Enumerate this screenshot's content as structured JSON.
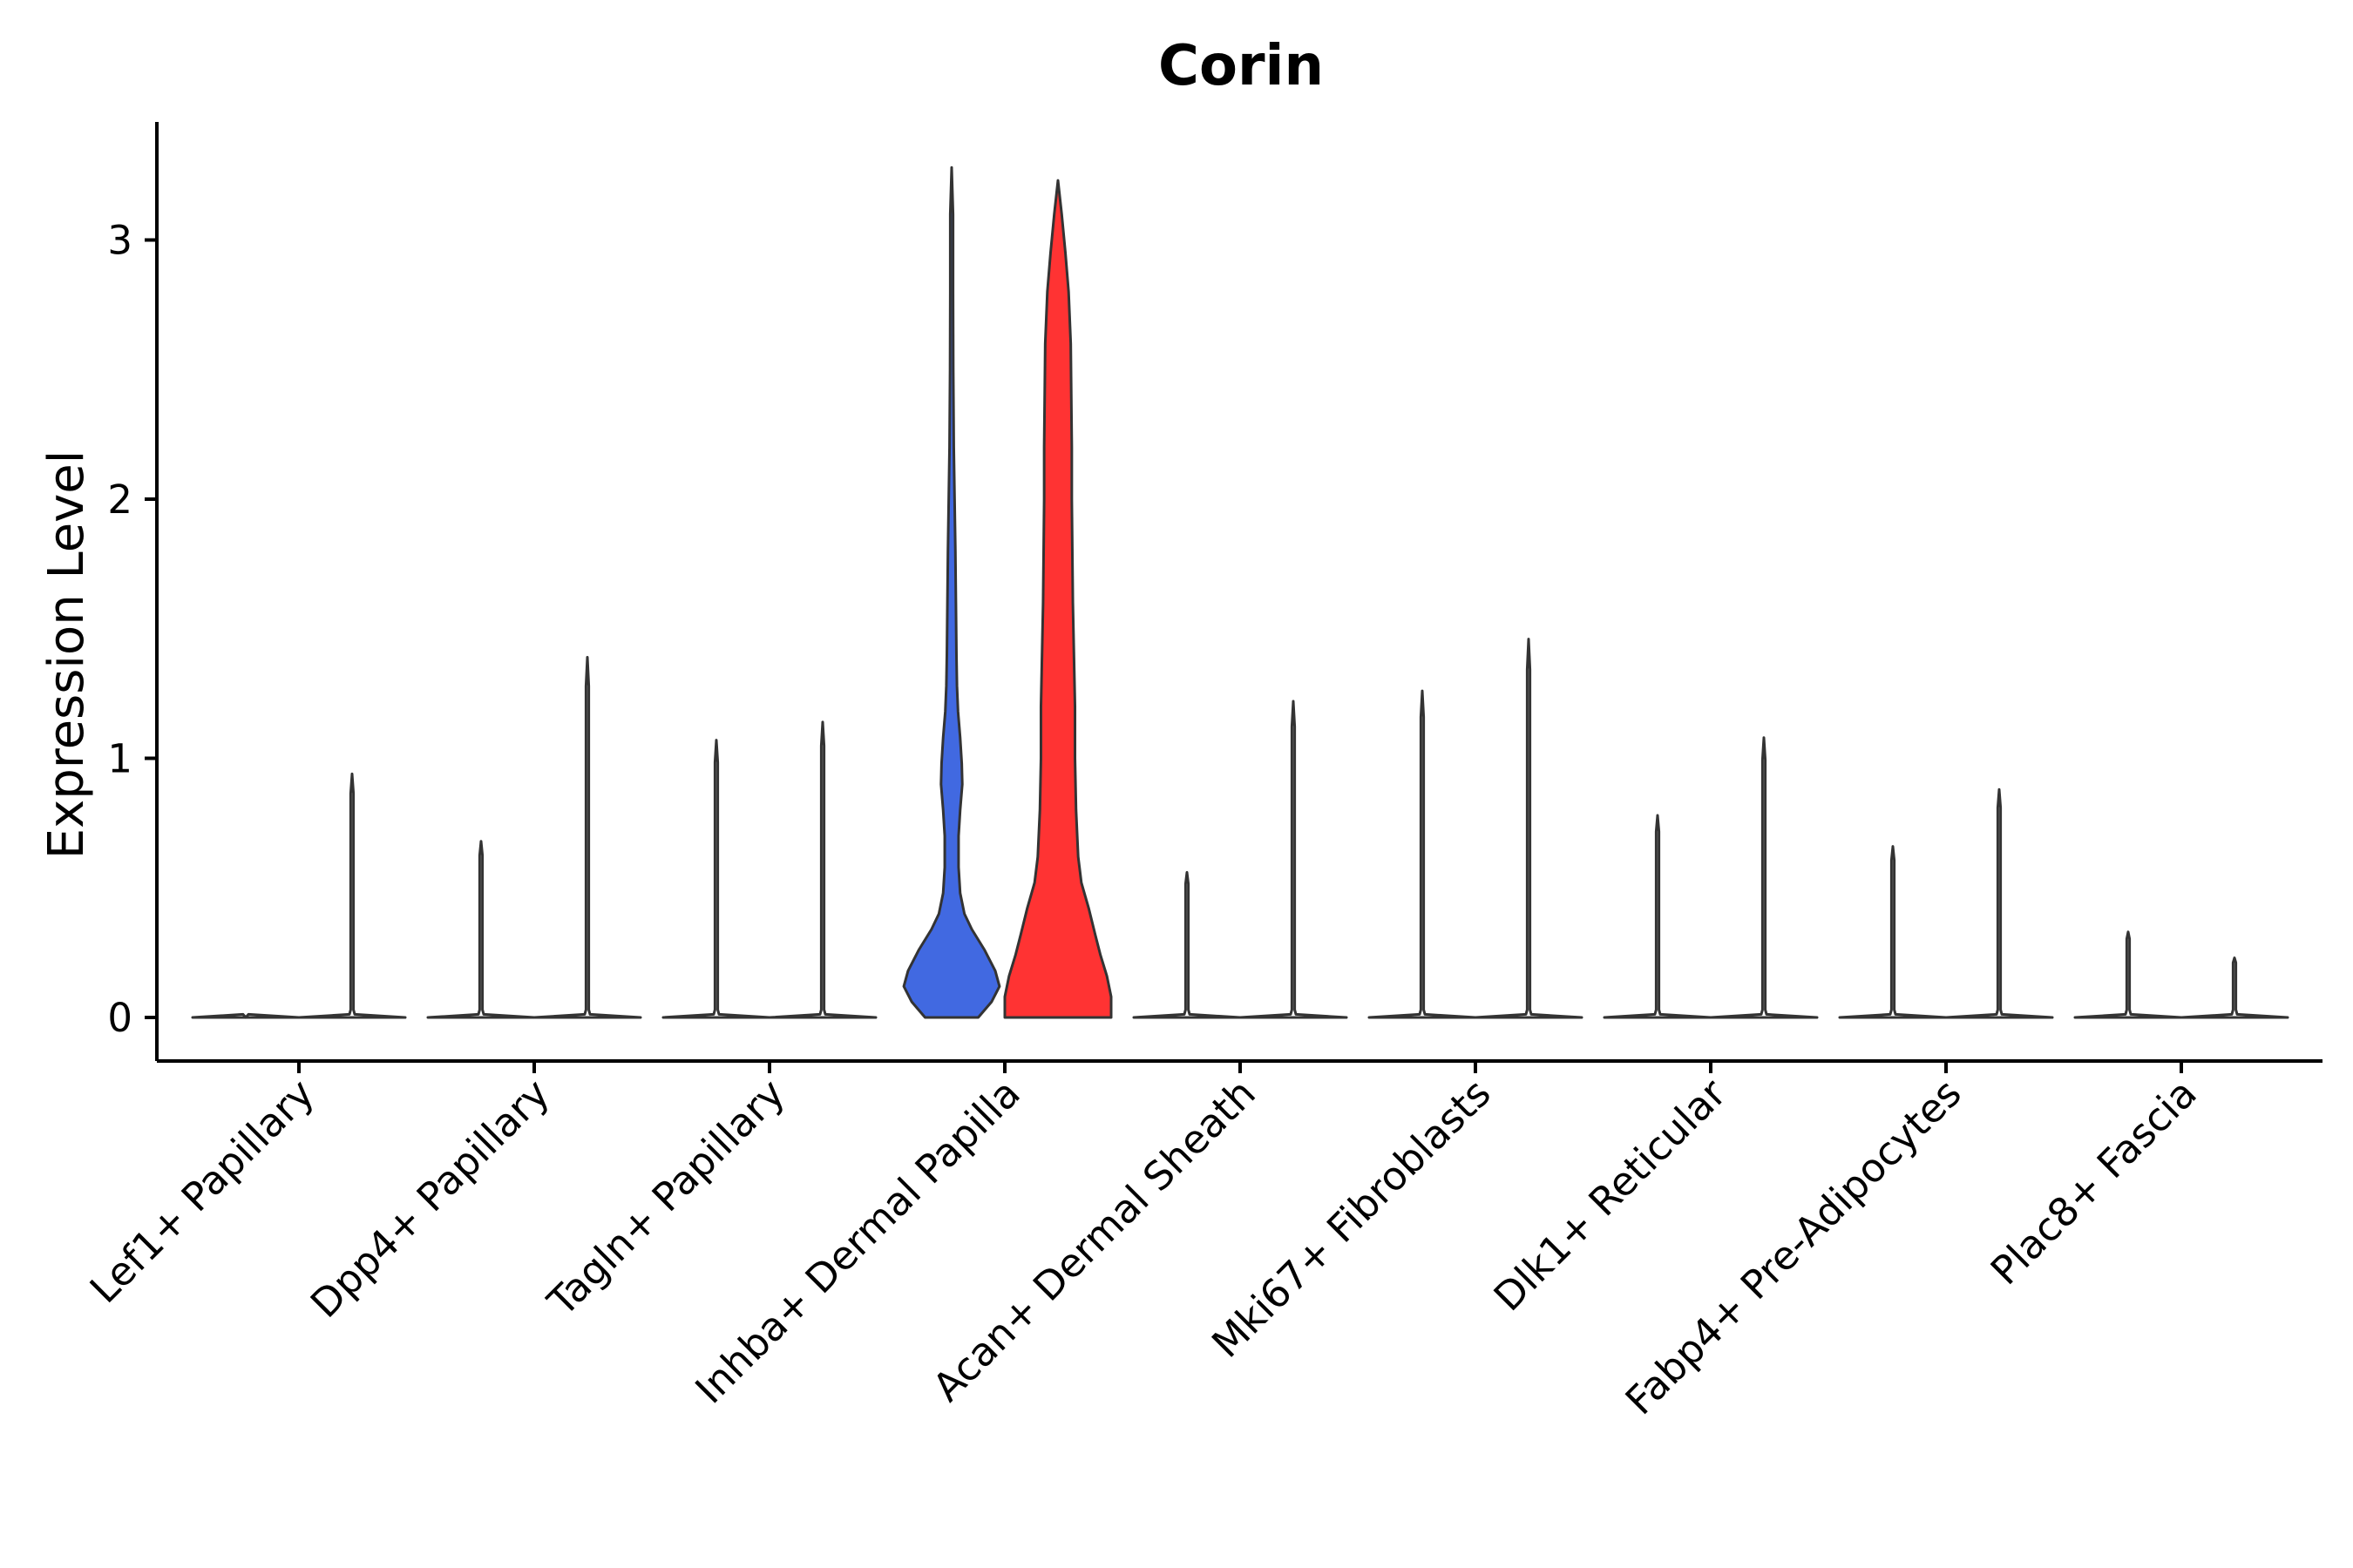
{
  "chart_data": {
    "type": "violin",
    "title": "Corin",
    "xlabel": "",
    "ylabel": "Expression Level",
    "ylim": [
      -0.16,
      3.45
    ],
    "yticks": [
      0,
      1,
      2,
      3
    ],
    "legend": "none",
    "grid": false,
    "categories": [
      "Lef1+ Papillary",
      "Dpp4+ Papillary",
      "Tagln+ Papillary",
      "Inhba+ Dermal Papilla",
      "Acan+ Dermal Sheath",
      "Mki67+ Fibroblasts",
      "Dlk1+ Reticular",
      "Fabp4+ Pre-Adipocytes",
      "Plac8+ Fascia"
    ],
    "violins": [
      {
        "category": "Lef1+ Papillary",
        "side": "left",
        "max": 0.0,
        "fill": "#ffffff"
      },
      {
        "category": "Lef1+ Papillary",
        "side": "right",
        "max": 0.94,
        "fill": "#ffffff"
      },
      {
        "category": "Dpp4+ Papillary",
        "side": "left",
        "max": 0.68,
        "fill": "#ffffff"
      },
      {
        "category": "Dpp4+ Papillary",
        "side": "right",
        "max": 1.39,
        "fill": "#ffffff"
      },
      {
        "category": "Tagln+ Papillary",
        "side": "left",
        "max": 1.07,
        "fill": "#ffffff"
      },
      {
        "category": "Tagln+ Papillary",
        "side": "right",
        "max": 1.14,
        "fill": "#ffffff"
      },
      {
        "category": "Inhba+ Dermal Papilla",
        "side": "left",
        "max": 3.28,
        "fill": "#4169e1"
      },
      {
        "category": "Inhba+ Dermal Papilla",
        "side": "right",
        "max": 3.23,
        "fill": "#ff3333"
      },
      {
        "category": "Acan+ Dermal Sheath",
        "side": "left",
        "max": 0.56,
        "fill": "#ffffff"
      },
      {
        "category": "Acan+ Dermal Sheath",
        "side": "right",
        "max": 1.22,
        "fill": "#ffffff"
      },
      {
        "category": "Mki67+ Fibroblasts",
        "side": "left",
        "max": 1.26,
        "fill": "#ffffff"
      },
      {
        "category": "Mki67+ Fibroblasts",
        "side": "right",
        "max": 1.46,
        "fill": "#ffffff"
      },
      {
        "category": "Dlk1+ Reticular",
        "side": "left",
        "max": 0.78,
        "fill": "#ffffff"
      },
      {
        "category": "Dlk1+ Reticular",
        "side": "right",
        "max": 1.08,
        "fill": "#ffffff"
      },
      {
        "category": "Fabp4+ Pre-Adipocytes",
        "side": "left",
        "max": 0.66,
        "fill": "#ffffff"
      },
      {
        "category": "Fabp4+ Pre-Adipocytes",
        "side": "right",
        "max": 0.88,
        "fill": "#ffffff"
      },
      {
        "category": "Plac8+ Fascia",
        "side": "left",
        "max": 0.33,
        "fill": "#ffffff"
      },
      {
        "category": "Plac8+ Fascia",
        "side": "right",
        "max": 0.23,
        "fill": "#ffffff"
      }
    ],
    "density_profiles": {
      "Inhba+ Dermal Papilla|left": [
        [
          0.0,
          0.5
        ],
        [
          0.06,
          0.75
        ],
        [
          0.12,
          0.9
        ],
        [
          0.18,
          0.82
        ],
        [
          0.26,
          0.62
        ],
        [
          0.34,
          0.38
        ],
        [
          0.4,
          0.24
        ],
        [
          0.48,
          0.16
        ],
        [
          0.58,
          0.13
        ],
        [
          0.7,
          0.13
        ],
        [
          0.8,
          0.16
        ],
        [
          0.9,
          0.2
        ],
        [
          0.98,
          0.19
        ],
        [
          1.08,
          0.16
        ],
        [
          1.18,
          0.12
        ],
        [
          1.28,
          0.1
        ],
        [
          1.4,
          0.09
        ],
        [
          1.6,
          0.08
        ],
        [
          1.8,
          0.07
        ],
        [
          2.0,
          0.055
        ],
        [
          2.2,
          0.04
        ],
        [
          2.5,
          0.03
        ],
        [
          2.8,
          0.02
        ],
        [
          3.1,
          0.01
        ],
        [
          3.28,
          0.0
        ]
      ],
      "Inhba+ Dermal Papilla|right": [
        [
          0.0,
          1.0
        ],
        [
          0.08,
          1.0
        ],
        [
          0.16,
          0.92
        ],
        [
          0.24,
          0.8
        ],
        [
          0.32,
          0.7
        ],
        [
          0.42,
          0.58
        ],
        [
          0.52,
          0.44
        ],
        [
          0.62,
          0.38
        ],
        [
          0.8,
          0.34
        ],
        [
          1.0,
          0.32
        ],
        [
          1.2,
          0.32
        ],
        [
          1.4,
          0.3
        ],
        [
          1.6,
          0.28
        ],
        [
          1.8,
          0.27
        ],
        [
          2.0,
          0.26
        ],
        [
          2.2,
          0.26
        ],
        [
          2.4,
          0.25
        ],
        [
          2.6,
          0.24
        ],
        [
          2.8,
          0.2
        ],
        [
          2.95,
          0.14
        ],
        [
          3.1,
          0.07
        ],
        [
          3.23,
          0.0
        ]
      ]
    }
  }
}
